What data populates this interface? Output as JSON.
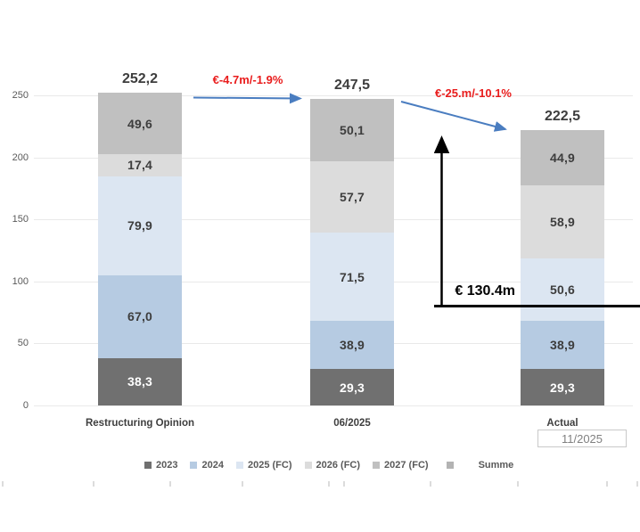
{
  "chart_data": {
    "type": "bar",
    "stacked": true,
    "categories": [
      "Restructuring Opinion",
      "06/2025",
      "Actual"
    ],
    "series": [
      {
        "name": "2023",
        "color": "#707070",
        "label_color": "#ffffff",
        "values": [
          38.3,
          29.3,
          29.3
        ]
      },
      {
        "name": "2024",
        "color": "#b6cbe2",
        "label_color": "#3d3d3d",
        "values": [
          67.0,
          38.9,
          38.9
        ]
      },
      {
        "name": "2025 (FC)",
        "color": "#dce6f2",
        "label_color": "#3d3d3d",
        "values": [
          79.9,
          71.5,
          50.6
        ]
      },
      {
        "name": "2026 (FC)",
        "color": "#dcdcdc",
        "label_color": "#3d3d3d",
        "values": [
          17.4,
          57.7,
          58.9
        ]
      },
      {
        "name": "2027 (FC)",
        "color": "#c0c0c0",
        "label_color": "#3d3d3d",
        "values": [
          49.6,
          50.1,
          44.9
        ]
      }
    ],
    "totals": [
      252.2,
      247.5,
      222.5
    ],
    "legend": [
      {
        "label": "2023",
        "color": "#707070"
      },
      {
        "label": "2024",
        "color": "#b6cbe2"
      },
      {
        "label": "2025 (FC)",
        "color": "#dce6f2"
      },
      {
        "label": "2026 (FC)",
        "color": "#dcdcdc"
      },
      {
        "label": "2027 (FC)",
        "color": "#c0c0c0"
      },
      {
        "label": "Summe",
        "color": "#b3b3b3",
        "wide_gap": true
      }
    ],
    "ylim": [
      0,
      250
    ],
    "ytick_step": 50,
    "grid": true,
    "legend_position": "bottom",
    "number_format": "comma-decimal"
  },
  "annotations": {
    "delta_1": "€-4.7m/-1.9%",
    "delta_2": "€-25.m/-10.1%",
    "sum_bracket": "€ 130.4m",
    "actual_date": "11/2025"
  },
  "colors": {
    "annotation_red": "#e91c1c",
    "arrow_blue": "#4a7dc0",
    "bracket_black": "#000000"
  }
}
